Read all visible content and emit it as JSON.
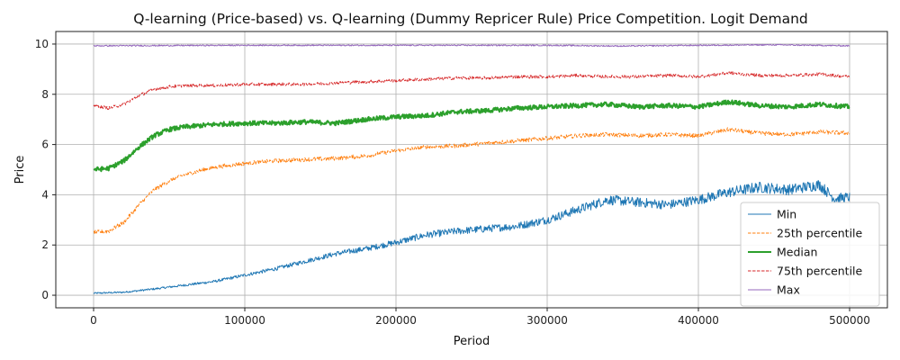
{
  "chart_data": {
    "type": "line",
    "title": "Q-learning (Price-based) vs. Q-learning (Dummy Repricer Rule) Price Competition. Logit Demand",
    "xlabel": "Period",
    "ylabel": "Price",
    "xlim": [
      -25000,
      525000
    ],
    "ylim": [
      -0.5,
      10.5
    ],
    "xticks": [
      0,
      100000,
      200000,
      300000,
      400000,
      500000
    ],
    "xtick_labels": [
      "0",
      "100000",
      "200000",
      "300000",
      "400000",
      "500000"
    ],
    "yticks": [
      0,
      2,
      4,
      6,
      8,
      10
    ],
    "ytick_labels": [
      "0",
      "2",
      "4",
      "6",
      "8",
      "10"
    ],
    "grid": true,
    "legend_position": "lower-right",
    "series": [
      {
        "name": "Min",
        "color": "#1f77b4",
        "style": "solid",
        "width": 1,
        "noise": 0.18,
        "x": [
          0,
          20000,
          40000,
          60000,
          80000,
          100000,
          120000,
          140000,
          160000,
          180000,
          200000,
          220000,
          240000,
          260000,
          280000,
          300000,
          320000,
          340000,
          360000,
          380000,
          400000,
          420000,
          440000,
          460000,
          480000,
          490000,
          500000
        ],
        "values": [
          0.08,
          0.12,
          0.25,
          0.4,
          0.55,
          0.8,
          1.05,
          1.35,
          1.65,
          1.85,
          2.1,
          2.4,
          2.55,
          2.65,
          2.75,
          3.0,
          3.4,
          3.8,
          3.7,
          3.6,
          3.8,
          4.1,
          4.3,
          4.2,
          4.4,
          3.85,
          3.9
        ]
      },
      {
        "name": "25th percentile",
        "color": "#ff7f0e",
        "style": "dashed",
        "width": 1,
        "noise": 0.08,
        "x": [
          0,
          10000,
          20000,
          30000,
          40000,
          50000,
          60000,
          80000,
          100000,
          120000,
          140000,
          160000,
          180000,
          200000,
          220000,
          240000,
          260000,
          280000,
          300000,
          320000,
          340000,
          360000,
          380000,
          400000,
          420000,
          440000,
          460000,
          480000,
          500000
        ],
        "values": [
          2.5,
          2.55,
          2.9,
          3.6,
          4.2,
          4.55,
          4.8,
          5.1,
          5.25,
          5.35,
          5.4,
          5.45,
          5.55,
          5.75,
          5.9,
          5.95,
          6.05,
          6.15,
          6.25,
          6.35,
          6.4,
          6.35,
          6.4,
          6.35,
          6.6,
          6.45,
          6.4,
          6.5,
          6.45
        ]
      },
      {
        "name": "Median",
        "color": "#2ca02c",
        "style": "solid",
        "width": 2,
        "noise": 0.09,
        "x": [
          0,
          10000,
          20000,
          30000,
          40000,
          50000,
          60000,
          80000,
          100000,
          120000,
          140000,
          160000,
          180000,
          200000,
          220000,
          240000,
          260000,
          280000,
          300000,
          320000,
          340000,
          360000,
          380000,
          400000,
          420000,
          440000,
          460000,
          480000,
          500000
        ],
        "values": [
          5.0,
          5.05,
          5.35,
          5.9,
          6.35,
          6.6,
          6.7,
          6.8,
          6.85,
          6.85,
          6.9,
          6.85,
          7.0,
          7.1,
          7.15,
          7.3,
          7.35,
          7.45,
          7.5,
          7.55,
          7.6,
          7.5,
          7.55,
          7.5,
          7.7,
          7.55,
          7.5,
          7.6,
          7.5
        ]
      },
      {
        "name": "75th percentile",
        "color": "#d62728",
        "style": "dashed",
        "width": 1,
        "noise": 0.06,
        "x": [
          0,
          10000,
          20000,
          30000,
          40000,
          50000,
          60000,
          80000,
          100000,
          120000,
          140000,
          160000,
          180000,
          200000,
          220000,
          240000,
          260000,
          280000,
          300000,
          320000,
          340000,
          360000,
          380000,
          400000,
          420000,
          440000,
          460000,
          480000,
          500000
        ],
        "values": [
          7.55,
          7.45,
          7.6,
          7.95,
          8.2,
          8.3,
          8.35,
          8.35,
          8.4,
          8.4,
          8.4,
          8.45,
          8.5,
          8.55,
          8.6,
          8.65,
          8.65,
          8.7,
          8.7,
          8.75,
          8.7,
          8.7,
          8.75,
          8.7,
          8.85,
          8.75,
          8.75,
          8.8,
          8.7
        ]
      },
      {
        "name": "Max",
        "color": "#9467bd",
        "style": "solid",
        "width": 1,
        "noise": 0.025,
        "x": [
          0,
          100000,
          200000,
          300000,
          350000,
          400000,
          450000,
          500000
        ],
        "values": [
          9.93,
          9.95,
          9.95,
          9.95,
          9.92,
          9.95,
          9.97,
          9.93
        ]
      }
    ]
  }
}
